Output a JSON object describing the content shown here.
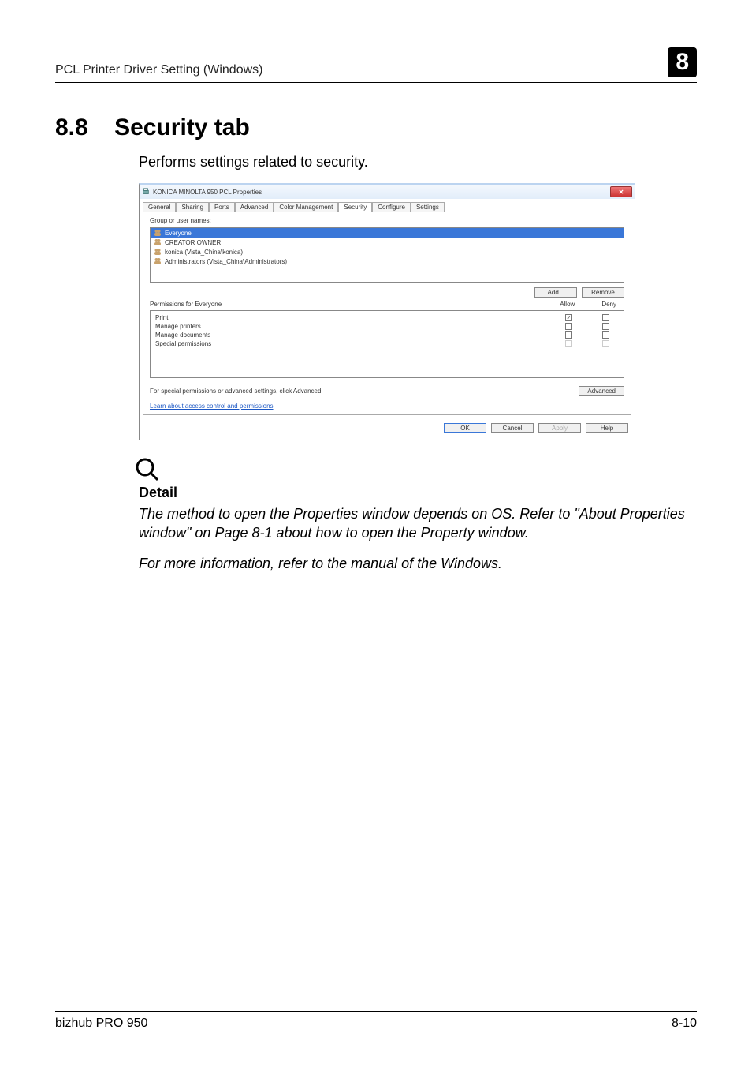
{
  "header": {
    "breadcrumb": "PCL Printer Driver Setting (Windows)",
    "chapter_badge": "8"
  },
  "section": {
    "number": "8.8",
    "title": "Security tab",
    "intro": "Performs settings related to security."
  },
  "dialog": {
    "title": "KONICA MINOLTA 950 PCL Properties",
    "tabs": [
      "General",
      "Sharing",
      "Ports",
      "Advanced",
      "Color Management",
      "Security",
      "Configure",
      "Settings"
    ],
    "active_tab_index": 5,
    "groups_label": "Group or user names:",
    "groups": [
      {
        "name": "Everyone",
        "selected": true
      },
      {
        "name": "CREATOR OWNER",
        "selected": false
      },
      {
        "name": "konica (Vista_China\\konica)",
        "selected": false
      },
      {
        "name": "Administrators (Vista_China\\Administrators)",
        "selected": false
      }
    ],
    "add_btn": "Add...",
    "remove_btn": "Remove",
    "perm_title": "Permissions for Everyone",
    "col_allow": "Allow",
    "col_deny": "Deny",
    "perms": [
      {
        "name": "Print",
        "allow": true,
        "deny": false,
        "disabled": false
      },
      {
        "name": "Manage printers",
        "allow": false,
        "deny": false,
        "disabled": false
      },
      {
        "name": "Manage documents",
        "allow": false,
        "deny": false,
        "disabled": false
      },
      {
        "name": "Special permissions",
        "allow": false,
        "deny": false,
        "disabled": true
      }
    ],
    "adv_text": "For special permissions or advanced settings, click Advanced.",
    "adv_btn": "Advanced",
    "link": "Learn about access control and permissions",
    "btn_ok": "OK",
    "btn_cancel": "Cancel",
    "btn_apply": "Apply",
    "btn_help": "Help"
  },
  "detail": {
    "heading": "Detail",
    "para1": "The method to open the Properties window depends on OS. Refer to \"About Properties window\" on Page 8-1 about how to open the Property window.",
    "para2": "For more information, refer to the manual of the Windows."
  },
  "footer": {
    "left": "bizhub PRO 950",
    "right": "8-10"
  },
  "colors": {
    "highlight_blue": "#3a77d8",
    "link_blue": "#1a56c4",
    "close_red_top": "#ee7777",
    "close_red_bot": "#cc3333"
  }
}
